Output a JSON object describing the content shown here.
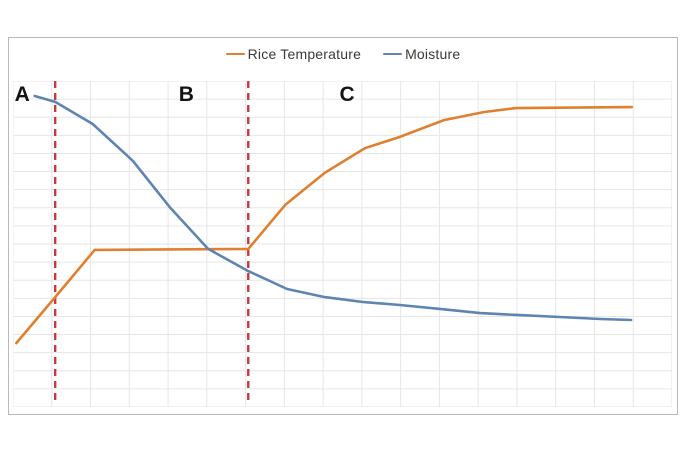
{
  "figure": {
    "background": "#ffffff",
    "border_color": "#b9b9b9"
  },
  "chart_data": {
    "type": "line",
    "title": "",
    "xlabel": "",
    "ylabel": "",
    "x_axis": {
      "tick_labels": [],
      "range_note": "no numeric axis labels shown; x expressed as percent of plot width"
    },
    "y_axis": {
      "tick_labels": [],
      "range_note": "no numeric axis labels shown; y expressed as percent of plot height from bottom"
    },
    "legend_position": "top-center",
    "grid": {
      "visible": true,
      "columns": 17,
      "rows": 18,
      "color": "#e6e6e6"
    },
    "phase_labels": [
      {
        "label": "A",
        "x": 1.4
      },
      {
        "label": "B",
        "x": 26.3
      },
      {
        "label": "C",
        "x": 50.7
      }
    ],
    "phase_boundaries": {
      "style": "dashed",
      "color": "#c7383f",
      "x_positions": [
        6.4,
        35.7
      ]
    },
    "series": [
      {
        "name": "Rice Temperature",
        "color": "#e0802e",
        "points": [
          [
            0.5,
            19.6
          ],
          [
            6.4,
            33.7
          ],
          [
            12.4,
            48.2
          ],
          [
            35.7,
            48.5
          ],
          [
            41.3,
            62.0
          ],
          [
            47.3,
            71.8
          ],
          [
            53.4,
            79.4
          ],
          [
            58.6,
            82.8
          ],
          [
            65.4,
            88.0
          ],
          [
            71.5,
            90.5
          ],
          [
            76.3,
            91.7
          ],
          [
            93.9,
            92.0
          ]
        ]
      },
      {
        "name": "Moisture",
        "color": "#5e84b1",
        "points": [
          [
            3.3,
            95.4
          ],
          [
            6.4,
            93.6
          ],
          [
            12.1,
            86.8
          ],
          [
            18.2,
            75.5
          ],
          [
            23.8,
            61.3
          ],
          [
            29.6,
            48.5
          ],
          [
            35.7,
            41.7
          ],
          [
            41.6,
            36.2
          ],
          [
            47.3,
            33.7
          ],
          [
            53.1,
            32.2
          ],
          [
            58.7,
            31.3
          ],
          [
            64.8,
            30.1
          ],
          [
            70.9,
            28.8
          ],
          [
            76.9,
            28.2
          ],
          [
            83.0,
            27.6
          ],
          [
            89.1,
            27.0
          ],
          [
            93.8,
            26.7
          ]
        ]
      }
    ]
  }
}
